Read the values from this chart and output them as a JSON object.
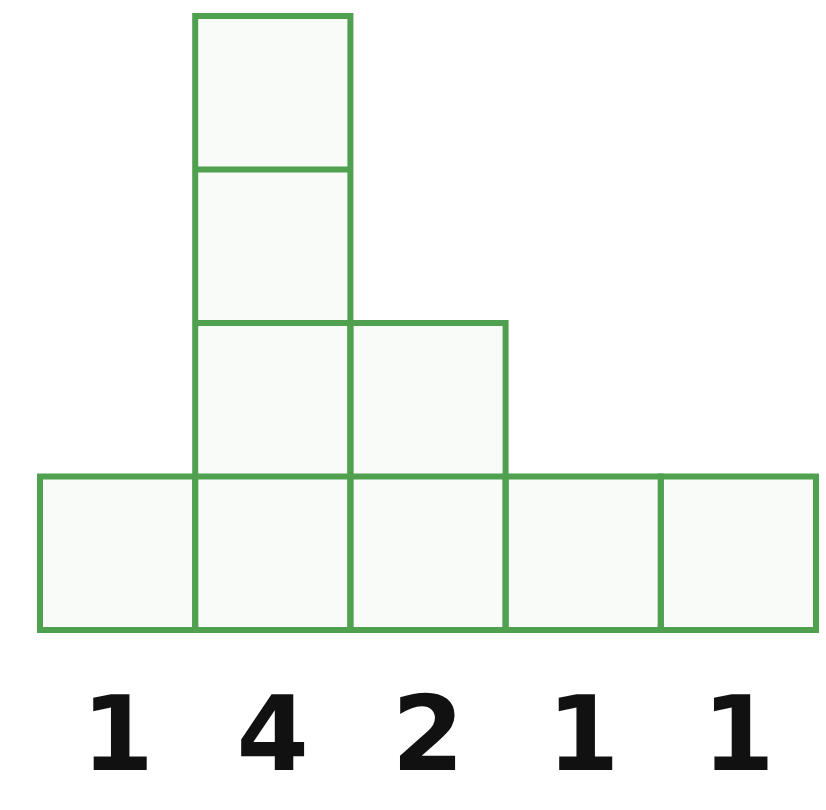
{
  "chart_data": {
    "type": "bar",
    "categories": [
      null,
      null,
      null,
      null,
      null
    ],
    "values": [
      1,
      4,
      2,
      1,
      1
    ],
    "color": "#4fa04f",
    "data_labels": true
  }
}
